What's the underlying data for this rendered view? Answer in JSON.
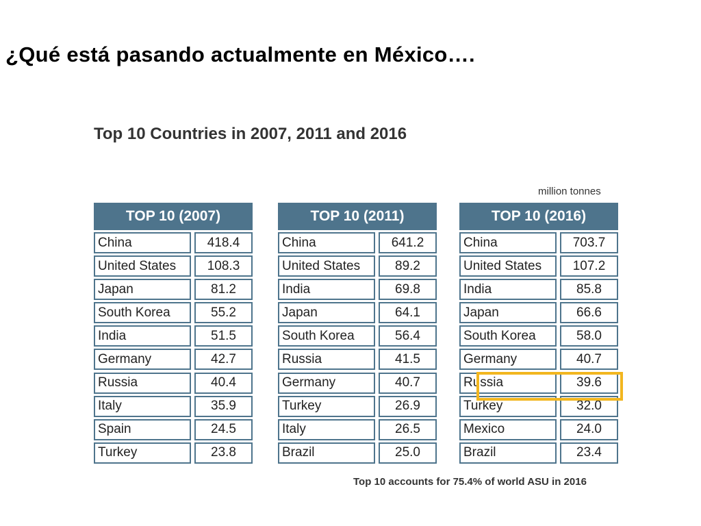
{
  "slide_title": "¿Qué está pasando actualmente en México….",
  "figure_title": "Top 10 Countries in 2007, 2011 and 2016",
  "units": "million tonnes",
  "footnote": "Top 10 accounts for 75.4% of world ASU in 2016",
  "highlight_color": "#f2b61f",
  "header_color": "#4e748c",
  "tables": [
    {
      "header": "TOP 10 (2007)",
      "rows": [
        {
          "country": "China",
          "value": "418.4"
        },
        {
          "country": "United States",
          "value": "108.3"
        },
        {
          "country": "Japan",
          "value": "81.2"
        },
        {
          "country": "South Korea",
          "value": "55.2"
        },
        {
          "country": "India",
          "value": "51.5"
        },
        {
          "country": "Germany",
          "value": "42.7"
        },
        {
          "country": "Russia",
          "value": "40.4"
        },
        {
          "country": "Italy",
          "value": "35.9"
        },
        {
          "country": "Spain",
          "value": "24.5"
        },
        {
          "country": "Turkey",
          "value": "23.8"
        }
      ]
    },
    {
      "header": "TOP 10 (2011)",
      "rows": [
        {
          "country": "China",
          "value": "641.2"
        },
        {
          "country": "United States",
          "value": "89.2"
        },
        {
          "country": "India",
          "value": "69.8"
        },
        {
          "country": "Japan",
          "value": "64.1"
        },
        {
          "country": "South Korea",
          "value": "56.4"
        },
        {
          "country": "Russia",
          "value": "41.5"
        },
        {
          "country": "Germany",
          "value": "40.7"
        },
        {
          "country": "Turkey",
          "value": "26.9"
        },
        {
          "country": "Italy",
          "value": "26.5"
        },
        {
          "country": "Brazil",
          "value": "25.0"
        }
      ]
    },
    {
      "header": "TOP 10 (2016)",
      "rows": [
        {
          "country": "China",
          "value": "703.7"
        },
        {
          "country": "United States",
          "value": "107.2"
        },
        {
          "country": "India",
          "value": "85.8"
        },
        {
          "country": "Japan",
          "value": "66.6"
        },
        {
          "country": "South Korea",
          "value": "58.0"
        },
        {
          "country": "Germany",
          "value": "40.7"
        },
        {
          "country": "Russia",
          "value": "39.6"
        },
        {
          "country": "Turkey",
          "value": "32.0"
        },
        {
          "country": "Mexico",
          "value": "24.0"
        },
        {
          "country": "Brazil",
          "value": "23.4"
        }
      ]
    }
  ]
}
